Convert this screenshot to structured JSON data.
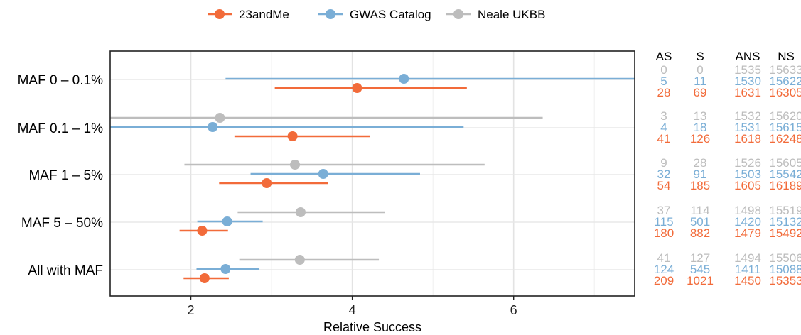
{
  "chart_data": {
    "type": "forest",
    "xlabel": "Relative Success",
    "ylabel": "",
    "xlim": [
      1,
      7.5
    ],
    "xticks": [
      2,
      4,
      6
    ],
    "grid": true,
    "legend_position": "top-center",
    "categories": [
      "MAF 0 – 0.1%",
      "MAF 0.1 – 1%",
      "MAF 1 – 5%",
      "MAF 5 – 50%",
      "All with MAF"
    ],
    "series": [
      {
        "name": "23andMe",
        "color": "#f26b3a",
        "points": [
          {
            "estimate": 4.06,
            "lower": 3.04,
            "upper": 5.42
          },
          {
            "estimate": 3.26,
            "lower": 2.54,
            "upper": 4.22
          },
          {
            "estimate": 2.94,
            "lower": 2.35,
            "upper": 3.7
          },
          {
            "estimate": 2.14,
            "lower": 1.86,
            "upper": 2.46
          },
          {
            "estimate": 2.17,
            "lower": 1.91,
            "upper": 2.47
          }
        ]
      },
      {
        "name": "GWAS Catalog",
        "color": "#7aaed6",
        "points": [
          {
            "estimate": 4.64,
            "lower": 2.43,
            "upper": 7.5
          },
          {
            "estimate": 2.27,
            "lower": 1.0,
            "upper": 5.38
          },
          {
            "estimate": 3.64,
            "lower": 2.74,
            "upper": 4.84
          },
          {
            "estimate": 2.45,
            "lower": 2.08,
            "upper": 2.89
          },
          {
            "estimate": 2.43,
            "lower": 2.07,
            "upper": 2.85
          }
        ]
      },
      {
        "name": "Neale UKBB",
        "color": "#bdbdbd",
        "points": [
          null,
          {
            "estimate": 2.36,
            "lower": 1.0,
            "upper": 6.36
          },
          {
            "estimate": 3.29,
            "lower": 1.92,
            "upper": 5.64
          },
          {
            "estimate": 3.36,
            "lower": 2.58,
            "upper": 4.4
          },
          {
            "estimate": 3.35,
            "lower": 2.6,
            "upper": 4.33
          }
        ]
      }
    ],
    "table": {
      "headers": [
        "AS",
        "S",
        "ANS",
        "NS"
      ],
      "groups": [
        {
          "rows": [
            {
              "series": "Neale UKBB",
              "values": [
                "0",
                "0",
                "1535",
                "15633"
              ]
            },
            {
              "series": "GWAS Catalog",
              "values": [
                "5",
                "11",
                "1530",
                "15622"
              ]
            },
            {
              "series": "23andMe",
              "values": [
                "28",
                "69",
                "1631",
                "16305"
              ]
            }
          ]
        },
        {
          "rows": [
            {
              "series": "Neale UKBB",
              "values": [
                "3",
                "13",
                "1532",
                "15620"
              ]
            },
            {
              "series": "GWAS Catalog",
              "values": [
                "4",
                "18",
                "1531",
                "15615"
              ]
            },
            {
              "series": "23andMe",
              "values": [
                "41",
                "126",
                "1618",
                "16248"
              ]
            }
          ]
        },
        {
          "rows": [
            {
              "series": "Neale UKBB",
              "values": [
                "9",
                "28",
                "1526",
                "15605"
              ]
            },
            {
              "series": "GWAS Catalog",
              "values": [
                "32",
                "91",
                "1503",
                "15542"
              ]
            },
            {
              "series": "23andMe",
              "values": [
                "54",
                "185",
                "1605",
                "16189"
              ]
            }
          ]
        },
        {
          "rows": [
            {
              "series": "Neale UKBB",
              "values": [
                "37",
                "114",
                "1498",
                "15519"
              ]
            },
            {
              "series": "GWAS Catalog",
              "values": [
                "115",
                "501",
                "1420",
                "15132"
              ]
            },
            {
              "series": "23andMe",
              "values": [
                "180",
                "882",
                "1479",
                "15492"
              ]
            }
          ]
        },
        {
          "rows": [
            {
              "series": "Neale UKBB",
              "values": [
                "41",
                "127",
                "1494",
                "15506"
              ]
            },
            {
              "series": "GWAS Catalog",
              "values": [
                "124",
                "545",
                "1411",
                "15088"
              ]
            },
            {
              "series": "23andMe",
              "values": [
                "209",
                "1021",
                "1450",
                "15353"
              ]
            }
          ]
        }
      ]
    }
  }
}
